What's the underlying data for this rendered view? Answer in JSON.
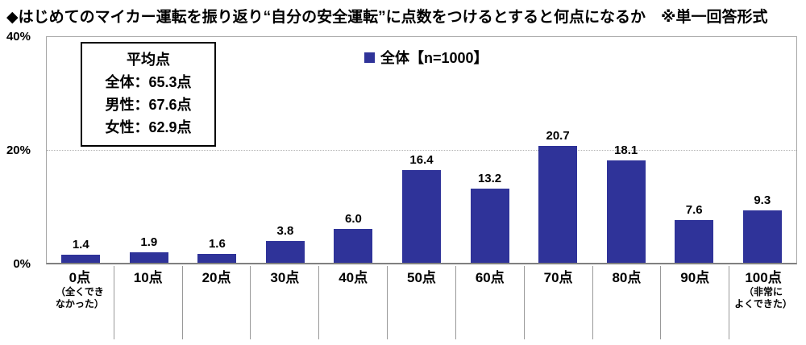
{
  "title": "◆はじめてのマイカー運転を振り返り“自分の安全運転”に点数をつけるとすると何点になるか　※単一回答形式",
  "legend": {
    "marker_color": "#2F3399",
    "label": "全体【n=1000】"
  },
  "average_box": {
    "title": "平均点",
    "lines": [
      "全体：65.3点",
      "男性：67.6点",
      "女性：62.9点"
    ]
  },
  "y_axis": {
    "ticks": [
      "40%",
      "20%",
      "0%"
    ]
  },
  "colors": {
    "bar": "#2F3399",
    "plot_border": "#A6A6A6",
    "axis_line": "#808080",
    "gridline": "#B3B3B3",
    "divider": "#999999",
    "text": "#000000",
    "background": "#FFFFFF"
  },
  "chart_data": {
    "type": "bar",
    "title": "◆はじめてのマイカー運転を振り返り“自分の安全運転”に点数をつけるとすると何点になるか　※単一回答形式",
    "series_name": "全体【n=1000】",
    "categories": [
      "0点",
      "10点",
      "20点",
      "30点",
      "40点",
      "50点",
      "60点",
      "70点",
      "80点",
      "90点",
      "100点"
    ],
    "category_sublabels": [
      [
        "（全くでき",
        "なかった）"
      ],
      [],
      [],
      [],
      [],
      [],
      [],
      [],
      [],
      [],
      [
        "（非常に",
        "よくできた）"
      ]
    ],
    "values": [
      1.4,
      1.9,
      1.6,
      3.8,
      6.0,
      16.4,
      13.2,
      20.7,
      18.1,
      7.6,
      9.3
    ],
    "value_labels": [
      "1.4",
      "1.9",
      "1.6",
      "3.8",
      "6.0",
      "16.4",
      "13.2",
      "20.7",
      "18.1",
      "7.6",
      "9.3"
    ],
    "xlabel": "",
    "ylabel": "%",
    "ylim": [
      0,
      40
    ],
    "yticks": [
      0,
      20,
      40
    ],
    "grid": "dotted horizontal line at 20%",
    "bar_color": "#2F3399",
    "legend_position": "top-center"
  }
}
